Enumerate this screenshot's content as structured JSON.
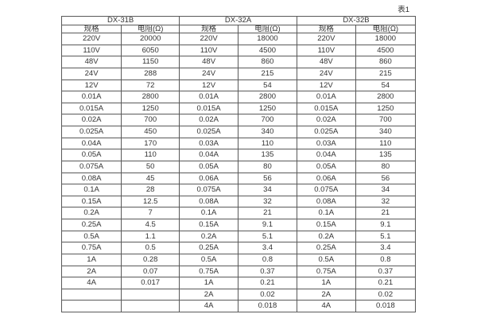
{
  "caption": "表1",
  "table": {
    "groups": [
      {
        "name": "DX-31B",
        "spec_header": "规格",
        "res_header": "电阻(Ω)"
      },
      {
        "name": "DX-32A",
        "spec_header": "规格",
        "res_header": "电阻(Ω)"
      },
      {
        "name": "DX-32B",
        "spec_header": "规格",
        "res_header": "电阻(Ω)"
      }
    ],
    "rows": [
      [
        "220V",
        "20000",
        "220V",
        "18000",
        "220V",
        "18000"
      ],
      [
        "110V",
        "6050",
        "110V",
        "4500",
        "110V",
        "4500"
      ],
      [
        "48V",
        "1150",
        "48V",
        "860",
        "48V",
        "860"
      ],
      [
        "24V",
        "288",
        "24V",
        "215",
        "24V",
        "215"
      ],
      [
        "12V",
        "72",
        "12V",
        "54",
        "12V",
        "54"
      ],
      [
        "0.01A",
        "2800",
        "0.01A",
        "2800",
        "0.01A",
        "2800"
      ],
      [
        "0.015A",
        "1250",
        "0.015A",
        "1250",
        "0.015A",
        "1250"
      ],
      [
        "0.02A",
        "700",
        "0.02A",
        "700",
        "0.02A",
        "700"
      ],
      [
        "0.025A",
        "450",
        "0.025A",
        "340",
        "0.025A",
        "340"
      ],
      [
        "0.04A",
        "170",
        "0.03A",
        "110",
        "0.03A",
        "110"
      ],
      [
        "0.05A",
        "110",
        "0.04A",
        "135",
        "0.04A",
        "135"
      ],
      [
        "0.075A",
        "50",
        "0.05A",
        "80",
        "0.05A",
        "80"
      ],
      [
        "0.08A",
        "45",
        "0.06A",
        "56",
        "0.06A",
        "56"
      ],
      [
        "0.1A",
        "28",
        "0.075A",
        "34",
        "0.075A",
        "34"
      ],
      [
        "0.15A",
        "12.5",
        "0.08A",
        "32",
        "0.08A",
        "32"
      ],
      [
        "0.2A",
        "7",
        "0.1A",
        "21",
        "0.1A",
        "21"
      ],
      [
        "0.25A",
        "4.5",
        "0.15A",
        "9.1",
        "0.15A",
        "9.1"
      ],
      [
        "0.5A",
        "1.1",
        "0.2A",
        "5.1",
        "0.2A",
        "5.1"
      ],
      [
        "0.75A",
        "0.5",
        "0.25A",
        "3.4",
        "0.25A",
        "3.4"
      ],
      [
        "1A",
        "0.28",
        "0.5A",
        "0.8",
        "0.5A",
        "0.8"
      ],
      [
        "2A",
        "0.07",
        "0.75A",
        "0.37",
        "0.75A",
        "0.37"
      ],
      [
        "4A",
        "0.017",
        "1A",
        "0.21",
        "1A",
        "0.21"
      ],
      [
        "",
        "",
        "2A",
        "0.02",
        "2A",
        "0.02"
      ],
      [
        "",
        "",
        "4A",
        "0.018",
        "4A",
        "0.018"
      ]
    ]
  },
  "chart_data": {
    "type": "table",
    "title": "表1",
    "column_groups": [
      "DX-31B",
      "DX-32A",
      "DX-32B"
    ],
    "column_headers_per_group": [
      "规格",
      "电阻(Ω)"
    ],
    "series": [
      {
        "name": "DX-31B",
        "specs": [
          "220V",
          "110V",
          "48V",
          "24V",
          "12V",
          "0.01A",
          "0.015A",
          "0.02A",
          "0.025A",
          "0.04A",
          "0.05A",
          "0.075A",
          "0.08A",
          "0.1A",
          "0.15A",
          "0.2A",
          "0.25A",
          "0.5A",
          "0.75A",
          "1A",
          "2A",
          "4A"
        ],
        "resistance_ohm": [
          20000,
          6050,
          1150,
          288,
          72,
          2800,
          1250,
          700,
          450,
          170,
          110,
          50,
          45,
          28,
          12.5,
          7,
          4.5,
          1.1,
          0.5,
          0.28,
          0.07,
          0.017
        ]
      },
      {
        "name": "DX-32A",
        "specs": [
          "220V",
          "110V",
          "48V",
          "24V",
          "12V",
          "0.01A",
          "0.015A",
          "0.02A",
          "0.025A",
          "0.03A",
          "0.04A",
          "0.05A",
          "0.06A",
          "0.075A",
          "0.08A",
          "0.1A",
          "0.15A",
          "0.2A",
          "0.25A",
          "0.5A",
          "0.75A",
          "1A",
          "2A",
          "4A"
        ],
        "resistance_ohm": [
          18000,
          4500,
          860,
          215,
          54,
          2800,
          1250,
          700,
          340,
          110,
          135,
          80,
          56,
          34,
          32,
          21,
          9.1,
          5.1,
          3.4,
          0.8,
          0.37,
          0.21,
          0.02,
          0.018
        ]
      },
      {
        "name": "DX-32B",
        "specs": [
          "220V",
          "110V",
          "48V",
          "24V",
          "12V",
          "0.01A",
          "0.015A",
          "0.02A",
          "0.025A",
          "0.03A",
          "0.04A",
          "0.05A",
          "0.06A",
          "0.075A",
          "0.08A",
          "0.1A",
          "0.15A",
          "0.2A",
          "0.25A",
          "0.5A",
          "0.75A",
          "1A",
          "2A",
          "4A"
        ],
        "resistance_ohm": [
          18000,
          4500,
          860,
          215,
          54,
          2800,
          1250,
          700,
          340,
          110,
          135,
          80,
          56,
          34,
          32,
          21,
          9.1,
          5.1,
          3.4,
          0.8,
          0.37,
          0.21,
          0.02,
          0.018
        ]
      }
    ]
  },
  "colors": {
    "border": "#595959",
    "text": "#333333",
    "background": "#ffffff"
  }
}
